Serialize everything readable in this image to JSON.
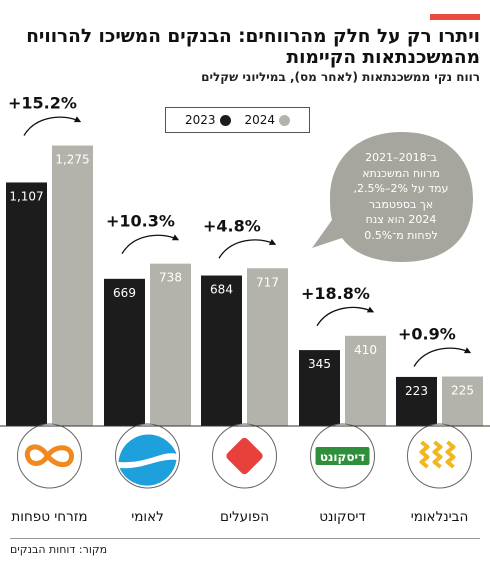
{
  "header": {
    "title": "ויתרו רק על חלק מהרווחים: הבנקים המשיכו להרוויח מהמשכנתאות הקיימות",
    "subtitle": "רווח נקי ממשכנתאות (לאחר מס), במיליוני שקלים"
  },
  "legend": [
    {
      "label": "2023",
      "color": "#1c1c1c"
    },
    {
      "label": "2024",
      "color": "#b4b3ab"
    }
  ],
  "note": {
    "lines": [
      "ב־2018–2021",
      "מרווח המשכנתא",
      "עמד על 2%–2.5%,",
      "אך בספטמבר",
      "2024 הוא צנח",
      "לפחות מ־0.5%"
    ],
    "bg": "#a7a69e"
  },
  "source": "מקור: דוחות הבנקים",
  "colors": {
    "y2023": "#1c1c1c",
    "y2024": "#b4b3ab",
    "accent": "#e84b3c"
  },
  "chart_data": {
    "type": "bar",
    "categories": [
      "מזרחי טפחות",
      "לאומי",
      "הפועלים",
      "דיסקונט",
      "הבינלאומי"
    ],
    "series": [
      {
        "name": "2023",
        "values": [
          1107,
          669,
          684,
          345,
          223
        ]
      },
      {
        "name": "2024",
        "values": [
          1275,
          738,
          717,
          410,
          225
        ]
      }
    ],
    "data_labels_2023": [
      "1,107",
      "669",
      "684",
      "345",
      "223"
    ],
    "data_labels_2024": [
      "1,275",
      "738",
      "717",
      "410",
      "225"
    ],
    "change_labels": [
      "+15.2%",
      "+10.3%",
      "+4.8%",
      "+18.8%",
      "+0.9%"
    ],
    "logo_icons": [
      "infinity-logo-icon",
      "wave-logo-icon",
      "diamond-logo-icon",
      "discount-wordmark-icon",
      "chevrons-logo-icon"
    ],
    "logo_text": [
      "",
      "",
      "",
      "דיסקונט",
      ""
    ]
  }
}
